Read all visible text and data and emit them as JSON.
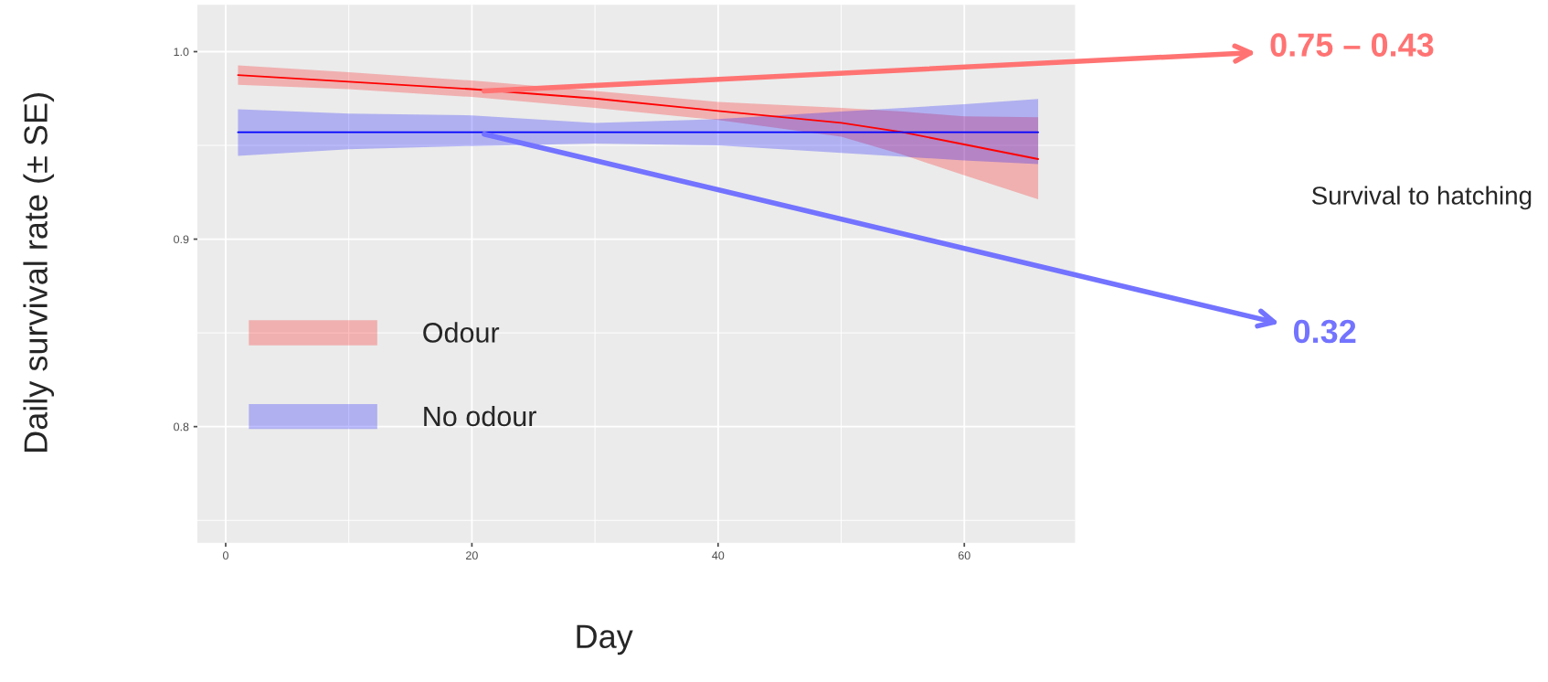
{
  "chart_data": {
    "type": "line",
    "xlabel": "Day",
    "ylabel": "Daily survival rate (± SE)",
    "xlim": [
      -2.3,
      69
    ],
    "xticks": [
      0,
      20,
      40,
      60
    ],
    "ylim": [
      0.738,
      1.025
    ],
    "yticks": [
      0.8,
      0.9,
      {
        "value": 1.0,
        "label": "1.0"
      }
    ],
    "grid": true,
    "legend": "center left",
    "series": [
      {
        "name": "Odour",
        "color": "#ff0000",
        "x": [
          1,
          10,
          20,
          30,
          40,
          50,
          55,
          60,
          66
        ],
        "values": [
          0.9875,
          0.984,
          0.98,
          0.975,
          0.9684,
          0.962,
          0.957,
          0.9505,
          0.9427
        ],
        "lower": [
          0.9823,
          0.98,
          0.9758,
          0.97,
          0.9635,
          0.9547,
          0.945,
          0.934,
          0.9213
        ],
        "upper": [
          0.9927,
          0.989,
          0.9846,
          0.979,
          0.9732,
          0.97,
          0.968,
          0.9655,
          0.965
        ]
      },
      {
        "name": "No odour",
        "color": "#0000ff",
        "x": [
          1,
          10,
          20,
          30,
          40,
          50,
          60,
          66
        ],
        "values": [
          0.957,
          0.957,
          0.957,
          0.957,
          0.957,
          0.957,
          0.957,
          0.957
        ],
        "lower": [
          0.9444,
          0.948,
          0.9497,
          0.951,
          0.95,
          0.946,
          0.942,
          0.94
        ],
        "upper": [
          0.9693,
          0.967,
          0.966,
          0.962,
          0.964,
          0.968,
          0.972,
          0.9748
        ]
      }
    ],
    "annotations": [
      {
        "text": "0.75 – 0.43",
        "x": 21,
        "y": 0.979
      },
      {
        "text": "0.32",
        "x": 21,
        "y": 0.956
      },
      "Survival to hatching"
    ]
  }
}
